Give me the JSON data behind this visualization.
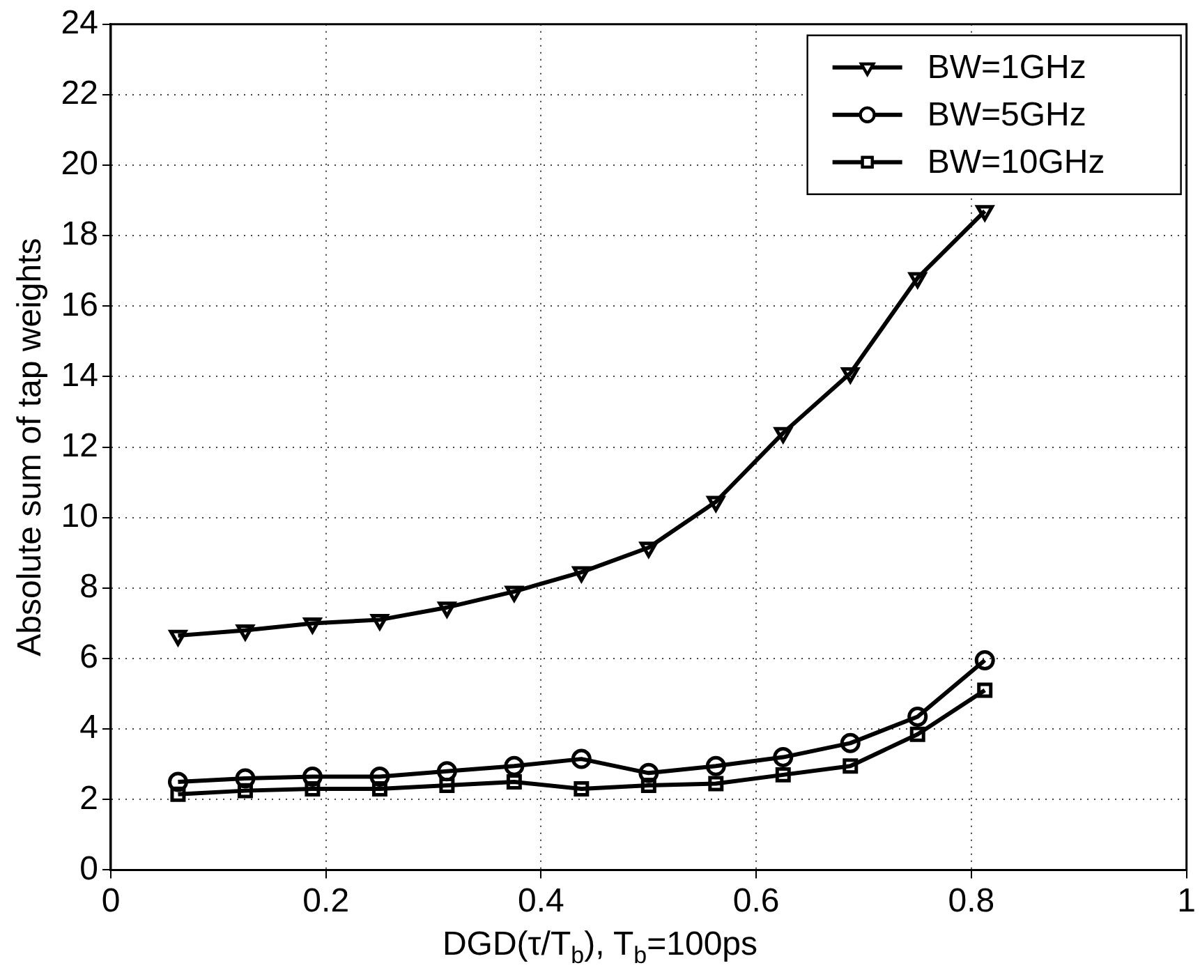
{
  "chart_data": {
    "type": "line",
    "xlabel": "DGD(τ/T$_{b}$), T$_{b}$=100ps",
    "ylabel": "Absolute sum of tap weights",
    "x": [
      0.0625,
      0.125,
      0.1875,
      0.25,
      0.3125,
      0.375,
      0.4375,
      0.5,
      0.5625,
      0.625,
      0.6875,
      0.75,
      0.8125
    ],
    "series": [
      {
        "name": "BW=1GHz",
        "color": "#000000",
        "marker": "triangle",
        "values": [
          6.65,
          6.8,
          7.0,
          7.1,
          7.45,
          7.9,
          8.45,
          9.15,
          10.45,
          12.4,
          14.1,
          16.8,
          18.7
        ]
      },
      {
        "name": "BW=5GHz",
        "color": "#000000",
        "marker": "circle",
        "values": [
          2.5,
          2.6,
          2.65,
          2.65,
          2.8,
          2.95,
          3.15,
          2.75,
          2.95,
          3.2,
          3.6,
          4.35,
          5.95
        ]
      },
      {
        "name": "BW=10GHz",
        "color": "#000000",
        "marker": "square",
        "values": [
          2.15,
          2.25,
          2.3,
          2.3,
          2.4,
          2.5,
          2.3,
          2.4,
          2.45,
          2.7,
          2.95,
          3.85,
          5.1
        ]
      }
    ],
    "xlim": [
      0,
      1
    ],
    "xticks": [
      0,
      0.2,
      0.4,
      0.6,
      0.8,
      1
    ],
    "ylim": [
      0,
      24
    ],
    "yticks": [
      0,
      2,
      4,
      6,
      8,
      10,
      12,
      14,
      16,
      18,
      20,
      22,
      24
    ],
    "grid": true,
    "legend": "top right",
    "line_style": "solid"
  }
}
